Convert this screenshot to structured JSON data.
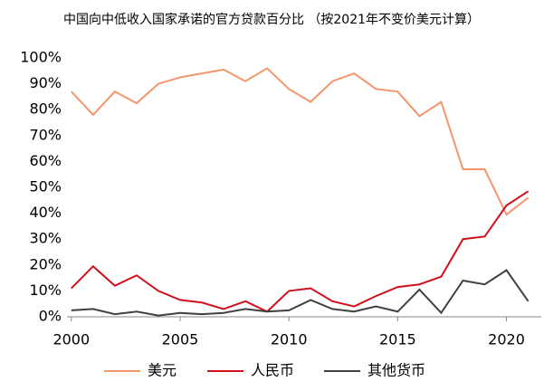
{
  "chart_data": {
    "type": "line",
    "title": "中国向中低收入国家承诺的官方贷款百分比 （按2021年不变价美元计算）",
    "x": [
      2000,
      2001,
      2002,
      2003,
      2004,
      2005,
      2006,
      2007,
      2008,
      2009,
      2010,
      2011,
      2012,
      2013,
      2014,
      2015,
      2016,
      2017,
      2018,
      2019,
      2020,
      2021
    ],
    "series": [
      {
        "name": "美元",
        "color": "#f4956b",
        "values": [
          87,
          78,
          87,
          82.5,
          90,
          92.5,
          94,
          95.5,
          91,
          96,
          88,
          83,
          91,
          94,
          88,
          87,
          77.5,
          83,
          57,
          57,
          39.5,
          46
        ]
      },
      {
        "name": "人民币",
        "color": "#d0101b",
        "values": [
          11,
          19.5,
          12,
          16,
          10,
          6.5,
          5.5,
          3,
          6,
          2,
          10,
          11,
          6,
          4,
          8,
          11.5,
          12.5,
          15.5,
          30,
          31,
          43,
          48.5
        ]
      },
      {
        "name": "其他货币",
        "color": "#404040",
        "values": [
          2.5,
          3,
          1,
          2,
          0.5,
          1.5,
          1,
          1.5,
          3,
          2,
          2.5,
          6.5,
          3,
          2,
          4,
          2,
          10.5,
          1.5,
          14,
          12.5,
          18,
          6
        ]
      }
    ],
    "xlim": [
      1999.8,
      2021.6
    ],
    "xticks": [
      2000,
      2005,
      2010,
      2015,
      2020
    ],
    "ylim": [
      0,
      100
    ],
    "yticks": [
      {
        "value": 0,
        "label": "0%"
      },
      {
        "value": 10,
        "label": "10%"
      },
      {
        "value": 20,
        "label": "20%"
      },
      {
        "value": 30,
        "label": "30%"
      },
      {
        "value": 40,
        "label": "40%"
      },
      {
        "value": 50,
        "label": "50%"
      },
      {
        "value": 60,
        "label": "60%"
      },
      {
        "value": 70,
        "label": "70%"
      },
      {
        "value": 80,
        "label": "80%"
      },
      {
        "value": 90,
        "label": "90%"
      },
      {
        "value": 100,
        "label": "100%"
      }
    ],
    "grid": false,
    "legend": "bottom"
  }
}
